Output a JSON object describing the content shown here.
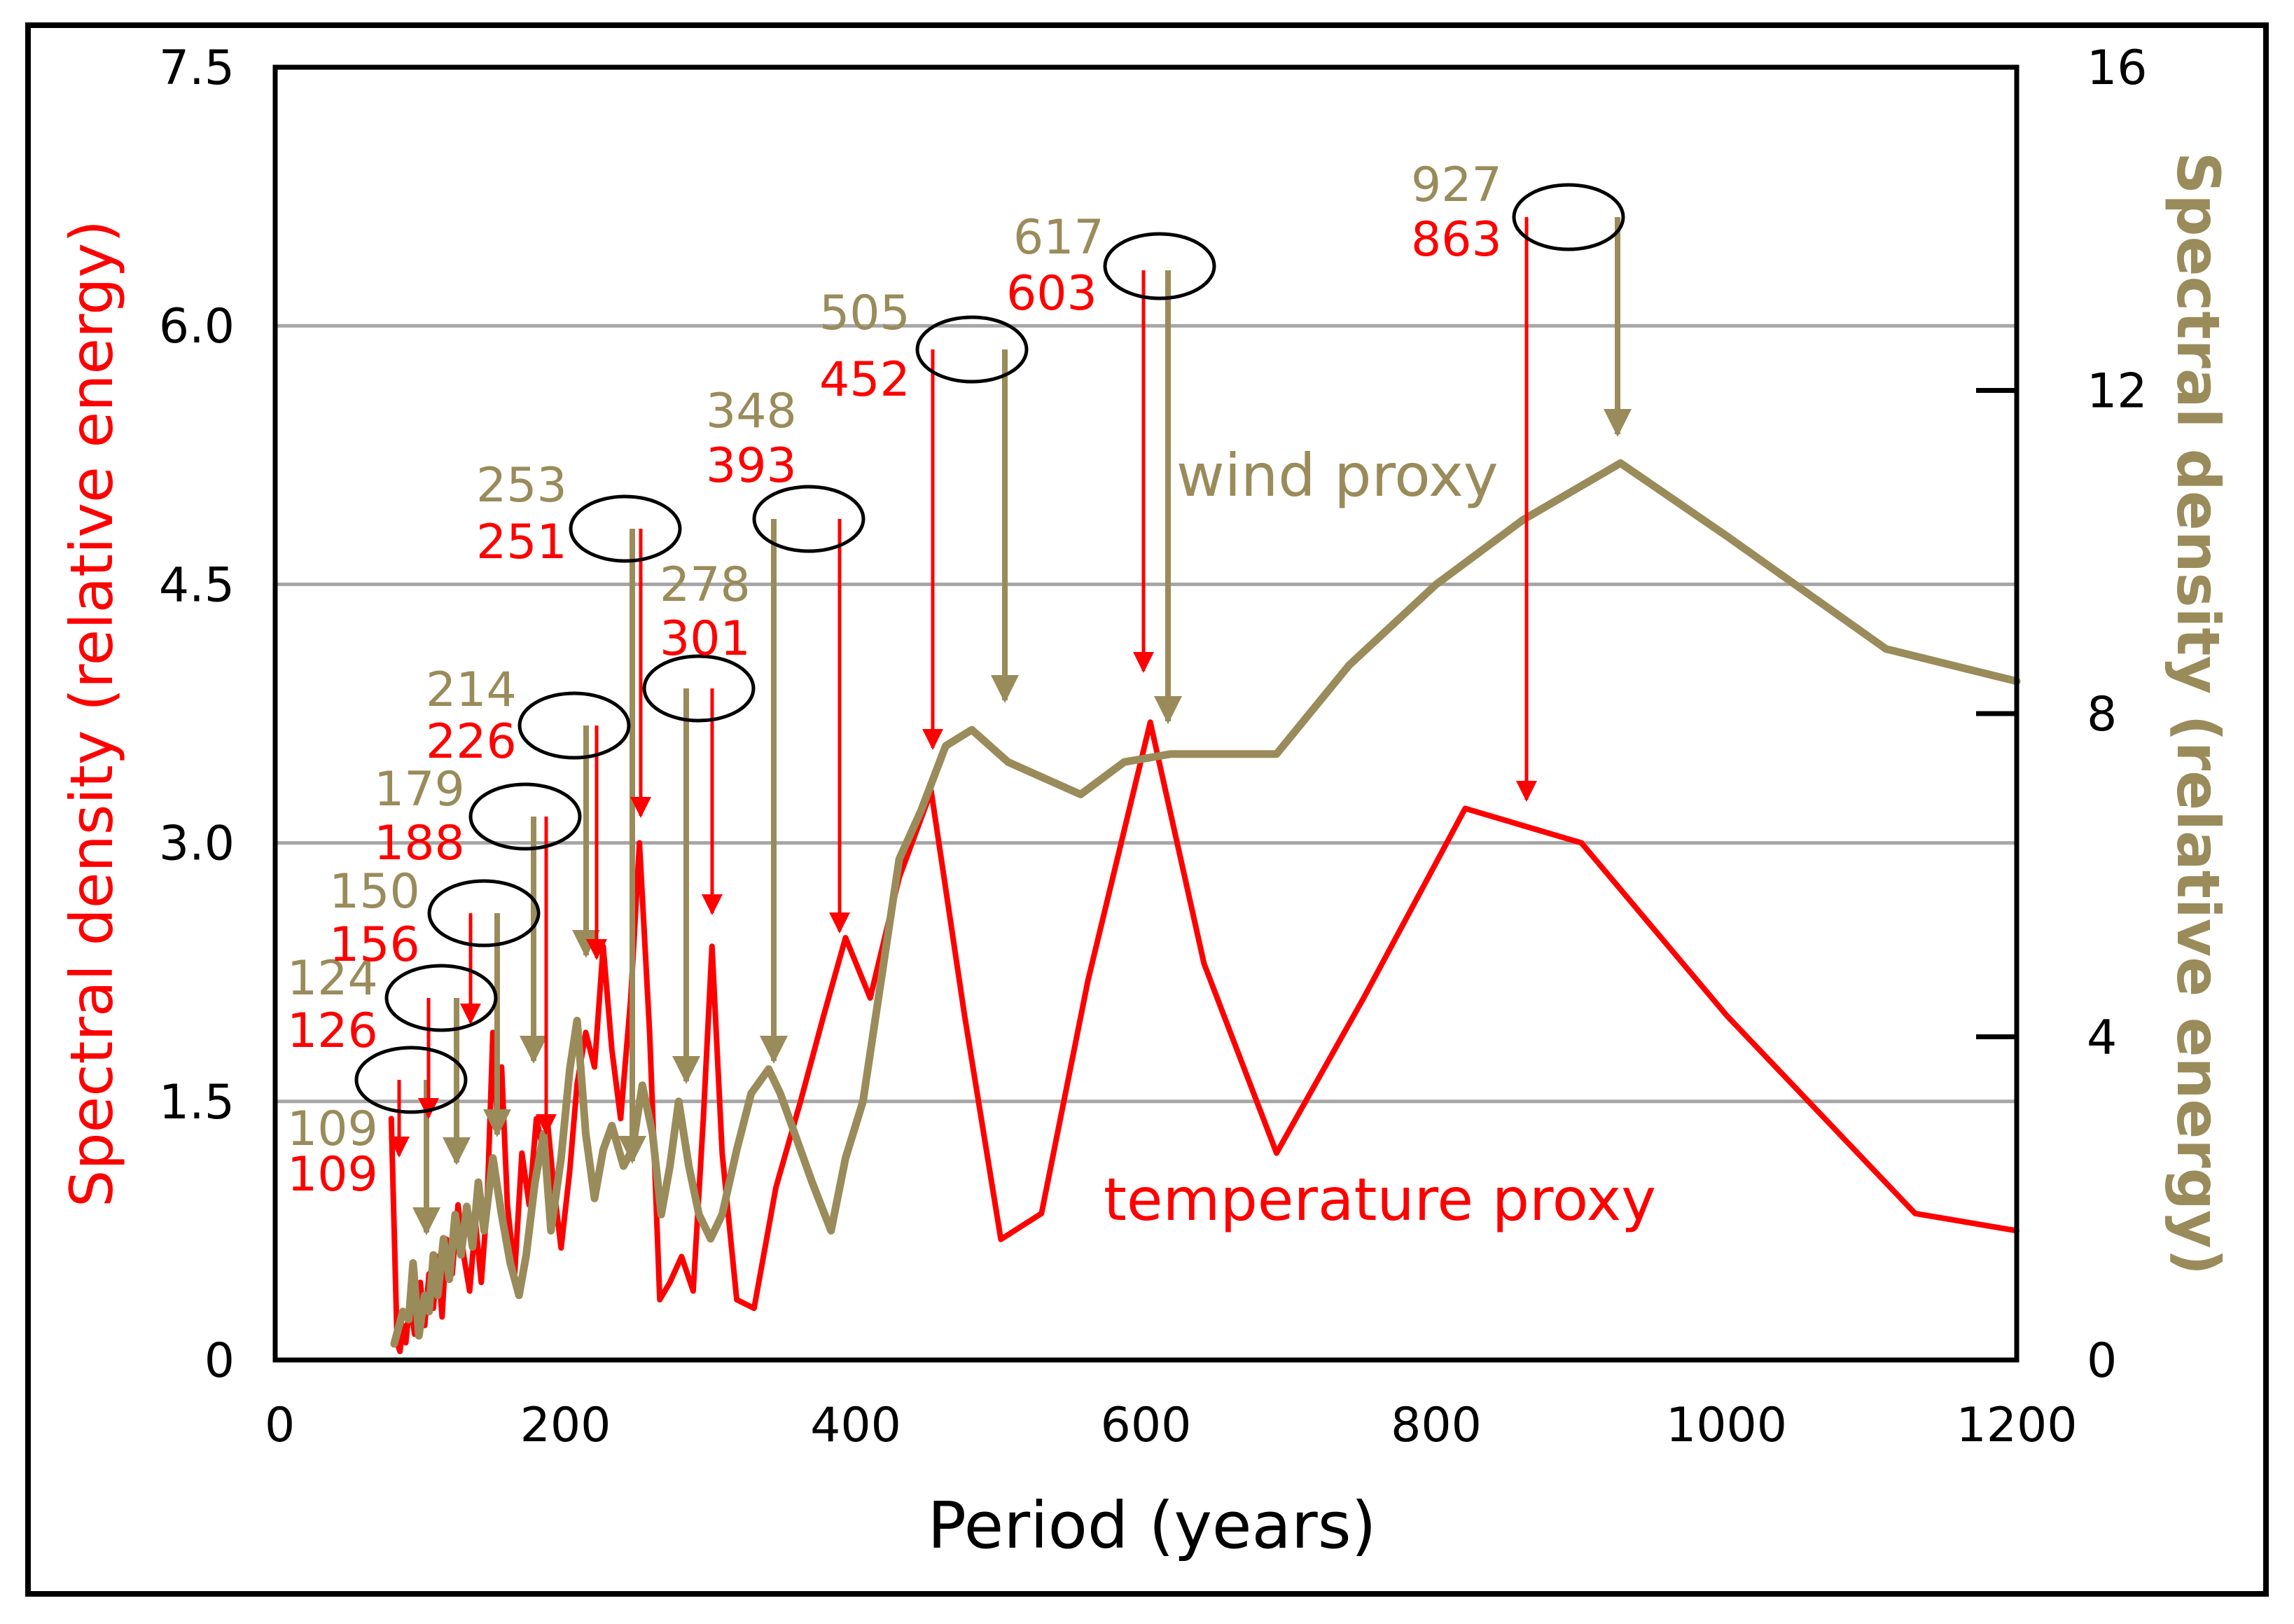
{
  "chart_data": {
    "type": "line",
    "title": "",
    "xlabel": "Period (years)",
    "ylabel_left": "Spectral density (relative energy)",
    "ylabel_right": "Spectral density (relative energy)",
    "xlim": [
      0,
      1200
    ],
    "ylim_left": [
      0,
      7.5
    ],
    "ylim_right": [
      0,
      16
    ],
    "x_ticks": [
      "0",
      "200",
      "400",
      "600",
      "800",
      "1000",
      "1200"
    ],
    "y_left_ticks": [
      "0",
      "1.5",
      "3.0",
      "4.5",
      "6.0",
      "7.5"
    ],
    "y_right_ticks": [
      "0",
      "4",
      "8",
      "12",
      "16"
    ],
    "gridlines_left": [
      1.5,
      3.0,
      4.5,
      6.0
    ],
    "colors": {
      "temperature": "#ff0000",
      "wind": "#9a8b5a"
    },
    "series": [
      {
        "name": "temperature proxy",
        "axis": "left",
        "x": [
          80,
          84,
          86,
          88,
          90,
          93,
          96,
          100,
          103,
          106,
          109,
          112,
          115,
          118,
          122,
          126,
          130,
          134,
          138,
          142,
          146,
          150,
          153,
          156,
          160,
          165,
          170,
          175,
          180,
          185,
          188,
          192,
          197,
          203,
          208,
          214,
          220,
          226,
          232,
          238,
          245,
          251,
          258,
          265,
          272,
          280,
          288,
          295,
          301,
          308,
          318,
          330,
          345,
          362,
          378,
          393,
          410,
          430,
          452,
          475,
          500,
          528,
          560,
          603,
          640,
          690,
          750,
          820,
          900,
          1000,
          1130,
          1200
        ],
        "y": [
          1.4,
          0.1,
          0.05,
          0.2,
          0.1,
          0.35,
          0.15,
          0.45,
          0.2,
          0.5,
          0.3,
          0.6,
          0.25,
          0.7,
          0.5,
          0.9,
          0.6,
          0.4,
          0.8,
          0.45,
          0.9,
          1.9,
          1.4,
          1.7,
          0.9,
          0.5,
          1.2,
          0.9,
          1.4,
          1.2,
          1.35,
          1.0,
          0.65,
          1.1,
          1.6,
          1.9,
          1.7,
          2.4,
          1.8,
          1.4,
          2.1,
          3.0,
          1.9,
          0.35,
          0.45,
          0.6,
          0.4,
          1.4,
          2.4,
          1.2,
          0.35,
          0.3,
          1.0,
          1.5,
          2.0,
          2.45,
          2.1,
          2.8,
          3.3,
          2.0,
          0.7,
          0.85,
          2.2,
          3.7,
          2.3,
          1.2,
          2.1,
          3.2,
          3.0,
          2.0,
          0.85,
          0.75
        ]
      },
      {
        "name": "wind proxy",
        "axis": "right",
        "x": [
          82,
          88,
          92,
          95,
          99,
          103,
          106,
          109,
          112,
          116,
          120,
          124,
          128,
          132,
          136,
          140,
          144,
          150,
          156,
          162,
          168,
          173,
          179,
          185,
          190,
          197,
          203,
          208,
          214,
          220,
          226,
          232,
          240,
          246,
          253,
          260,
          266,
          272,
          278,
          285,
          292,
          300,
          308,
          318,
          328,
          340,
          348,
          358,
          370,
          383,
          393,
          405,
          415,
          430,
          445,
          462,
          480,
          505,
          530,
          555,
          585,
          617,
          650,
          690,
          740,
          800,
          860,
          927,
          1000,
          1110,
          1200
        ],
        "y": [
          0.2,
          0.6,
          0.5,
          1.2,
          0.3,
          0.8,
          0.6,
          1.3,
          0.8,
          1.5,
          1.0,
          1.8,
          1.3,
          1.9,
          1.4,
          2.2,
          1.6,
          2.5,
          1.8,
          1.2,
          0.8,
          1.3,
          2.2,
          2.8,
          1.6,
          2.5,
          3.6,
          4.2,
          2.8,
          2.0,
          2.6,
          2.9,
          2.4,
          2.6,
          3.4,
          2.8,
          1.8,
          2.4,
          3.2,
          2.4,
          1.8,
          1.5,
          1.8,
          2.6,
          3.3,
          3.6,
          3.3,
          2.8,
          2.2,
          1.6,
          2.5,
          3.2,
          4.4,
          6.2,
          6.8,
          7.6,
          7.8,
          7.4,
          7.2,
          7.0,
          7.4,
          7.5,
          7.5,
          7.5,
          8.6,
          9.6,
          10.4,
          11.1,
          10.2,
          8.8,
          8.4
        ]
      }
    ],
    "annotations": [
      {
        "wind_label": "109",
        "temp_label": "109"
      },
      {
        "wind_label": "124",
        "temp_label": "126"
      },
      {
        "wind_label": "150",
        "temp_label": "156"
      },
      {
        "wind_label": "179",
        "temp_label": "188"
      },
      {
        "wind_label": "214",
        "temp_label": "226"
      },
      {
        "wind_label": "253",
        "temp_label": "251"
      },
      {
        "wind_label": "278",
        "temp_label": "301"
      },
      {
        "wind_label": "348",
        "temp_label": "393"
      },
      {
        "wind_label": "505",
        "temp_label": "452"
      },
      {
        "wind_label": "617",
        "temp_label": "603"
      },
      {
        "wind_label": "927",
        "temp_label": "863"
      }
    ]
  }
}
